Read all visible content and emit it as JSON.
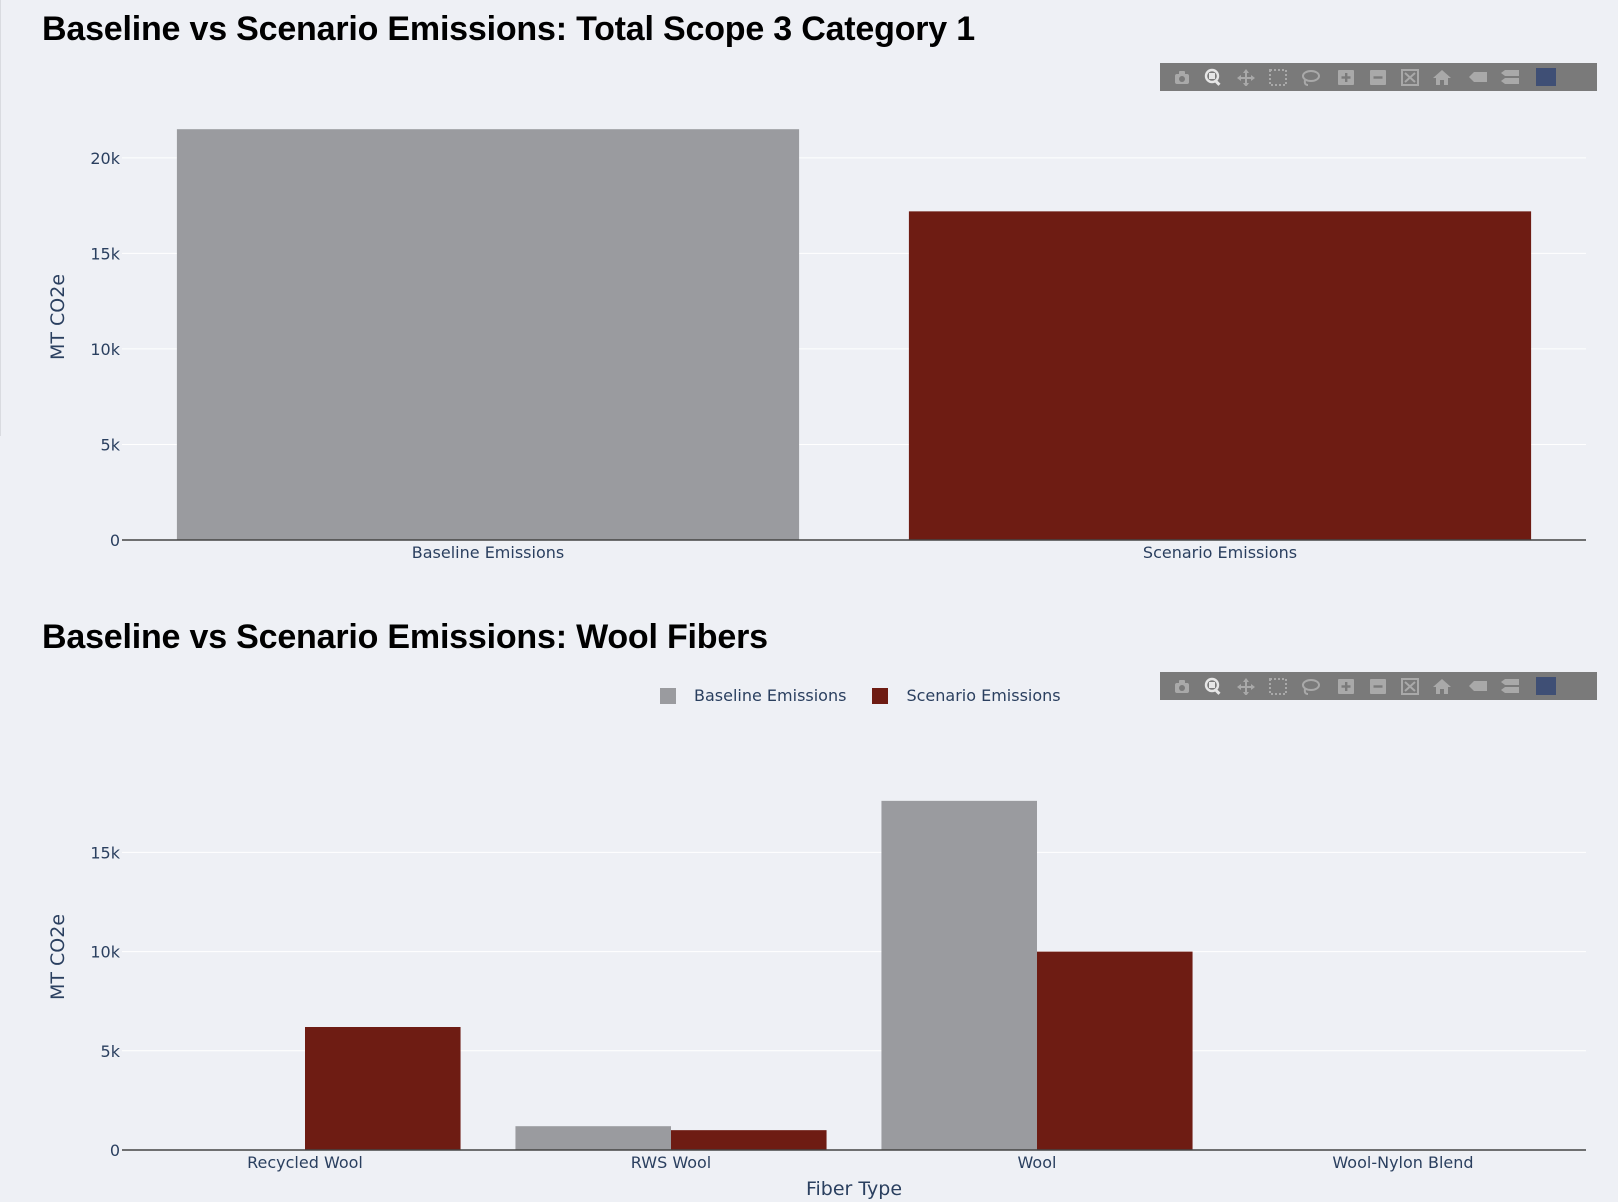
{
  "colors": {
    "baseline": "#9a9b9f",
    "scenario": "#6e1c13",
    "axis": "#2a3f5f",
    "modebar_bg": "#7a7a7a",
    "modebar_icon": "#a9a9a9"
  },
  "modebar_icons": [
    "camera-icon",
    "zoom-icon",
    "pan-icon",
    "box-select-icon",
    "lasso-icon",
    "zoom-in-icon",
    "zoom-out-icon",
    "autoscale-icon",
    "reset-axes-icon",
    "hover-closest-icon",
    "hover-compare-icon",
    "plotly-logo-icon"
  ],
  "chart_data": [
    {
      "type": "bar",
      "title": "Baseline vs Scenario Emissions: Total Scope 3 Category 1",
      "categories": [
        "Baseline Emissions",
        "Scenario Emissions"
      ],
      "values": [
        21500,
        17200
      ],
      "bar_colors": [
        "#9a9b9f",
        "#6e1c13"
      ],
      "xlabel": "",
      "ylabel": "MT CO2e",
      "ylim": [
        0,
        22400
      ],
      "yticks": [
        0,
        5000,
        10000,
        15000,
        20000
      ],
      "ytick_labels": [
        "0",
        "5k",
        "10k",
        "15k",
        "20k"
      ],
      "grid": true,
      "legend": false
    },
    {
      "type": "bar",
      "title": "Baseline vs Scenario Emissions: Wool Fibers",
      "categories": [
        "Recycled Wool",
        "RWS Wool",
        "Wool",
        "Wool-Nylon Blend"
      ],
      "series": [
        {
          "name": "Baseline Emissions",
          "values": [
            0,
            1200,
            17600,
            0
          ],
          "color": "#9a9b9f"
        },
        {
          "name": "Scenario Emissions",
          "values": [
            6200,
            1000,
            10000,
            0
          ],
          "color": "#6e1c13"
        }
      ],
      "xlabel": "Fiber Type",
      "ylabel": "MT CO2e",
      "ylim": [
        0,
        18500
      ],
      "yticks": [
        0,
        5000,
        10000,
        15000
      ],
      "ytick_labels": [
        "0",
        "5k",
        "10k",
        "15k"
      ],
      "grid": true,
      "legend": "top-center"
    }
  ]
}
